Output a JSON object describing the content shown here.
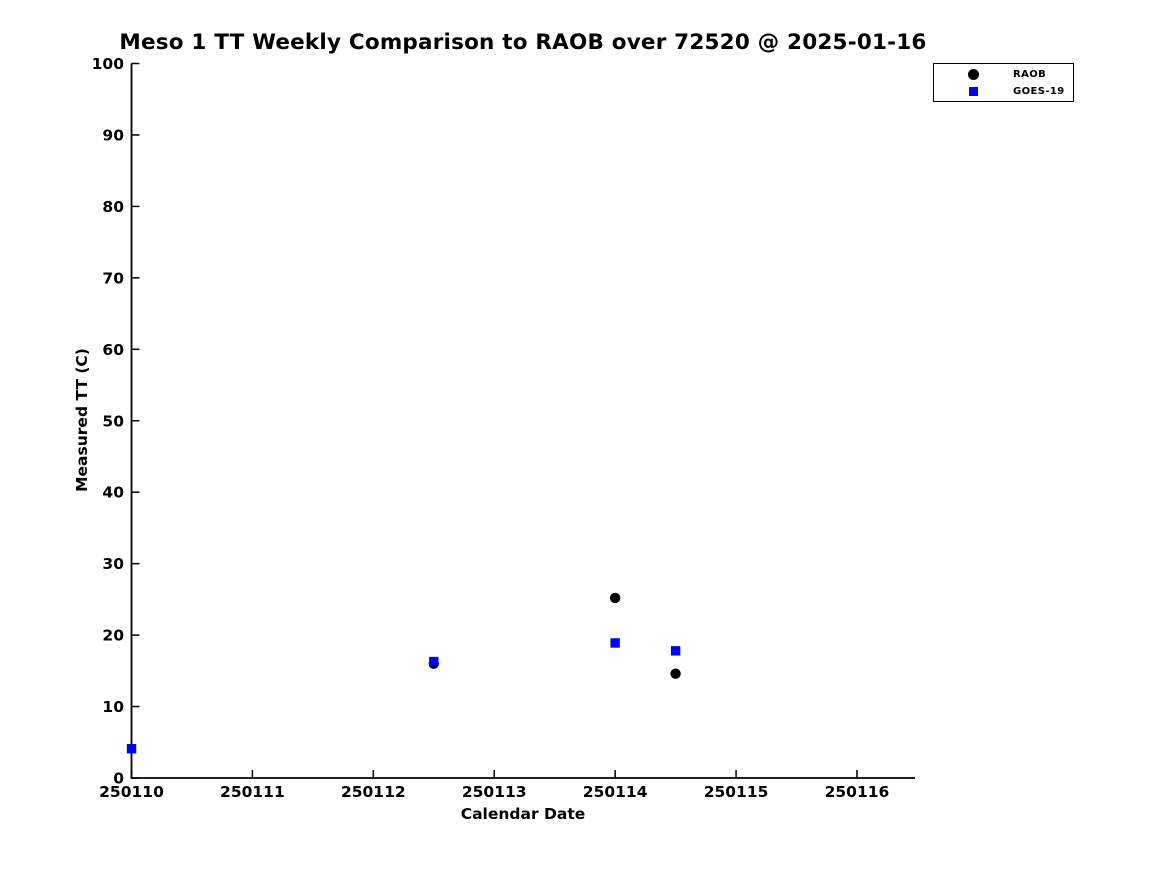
{
  "page": {
    "background": "#ffffff",
    "axis_color": "#000000"
  },
  "chart_data": {
    "type": "scatter",
    "title": "Meso 1 TT Weekly Comparison to RAOB over 72520 @ 2025-01-16",
    "xlabel": "Calendar Date",
    "ylabel": "Measured TT (C)",
    "xlim": [
      250110,
      250116.48
    ],
    "ylim": [
      0,
      100
    ],
    "xticks": [
      250110,
      250111,
      250112,
      250113,
      250114,
      250115,
      250116
    ],
    "yticks": [
      0,
      10,
      20,
      30,
      40,
      50,
      60,
      70,
      80,
      90,
      100
    ],
    "grid": false,
    "legend_position": "top-right",
    "series": [
      {
        "name": "RAOB",
        "marker": "circle",
        "color": "#000000",
        "points": [
          [
            250112.5,
            16.0
          ],
          [
            250114.0,
            25.2
          ],
          [
            250114.5,
            14.6
          ]
        ]
      },
      {
        "name": "GOES-19",
        "marker": "square",
        "color": "#0000ff",
        "points": [
          [
            250110.0,
            4.1
          ],
          [
            250112.5,
            16.3
          ],
          [
            250114.0,
            18.9
          ],
          [
            250114.5,
            17.8
          ]
        ]
      }
    ]
  }
}
